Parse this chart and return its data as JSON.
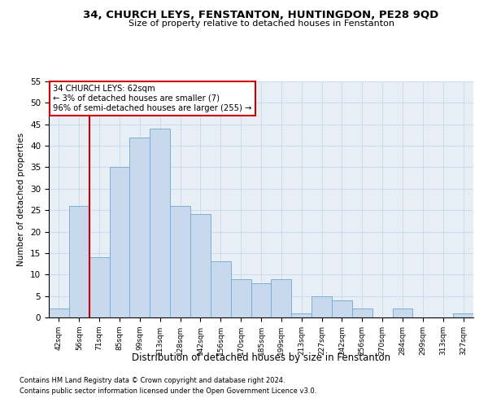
{
  "title": "34, CHURCH LEYS, FENSTANTON, HUNTINGDON, PE28 9QD",
  "subtitle": "Size of property relative to detached houses in Fenstanton",
  "xlabel": "Distribution of detached houses by size in Fenstanton",
  "ylabel": "Number of detached properties",
  "bar_labels": [
    "42sqm",
    "56sqm",
    "71sqm",
    "85sqm",
    "99sqm",
    "113sqm",
    "128sqm",
    "142sqm",
    "156sqm",
    "170sqm",
    "185sqm",
    "199sqm",
    "213sqm",
    "227sqm",
    "242sqm",
    "256sqm",
    "270sqm",
    "284sqm",
    "299sqm",
    "313sqm",
    "327sqm"
  ],
  "bar_values": [
    2,
    26,
    14,
    35,
    42,
    44,
    26,
    24,
    13,
    9,
    8,
    9,
    1,
    5,
    4,
    2,
    0,
    2,
    0,
    0,
    1
  ],
  "bar_color": "#c8d9ee",
  "bar_edge_color": "#7aafd4",
  "vline_color": "#cc0000",
  "vline_x_index": 1.5,
  "grid_color": "#c8d8e8",
  "background_color": "#e8eef6",
  "ylim": [
    0,
    55
  ],
  "yticks": [
    0,
    5,
    10,
    15,
    20,
    25,
    30,
    35,
    40,
    45,
    50,
    55
  ],
  "annotation_box_text": "34 CHURCH LEYS: 62sqm\n← 3% of detached houses are smaller (7)\n96% of semi-detached houses are larger (255) →",
  "footnote1": "Contains HM Land Registry data © Crown copyright and database right 2024.",
  "footnote2": "Contains public sector information licensed under the Open Government Licence v3.0."
}
